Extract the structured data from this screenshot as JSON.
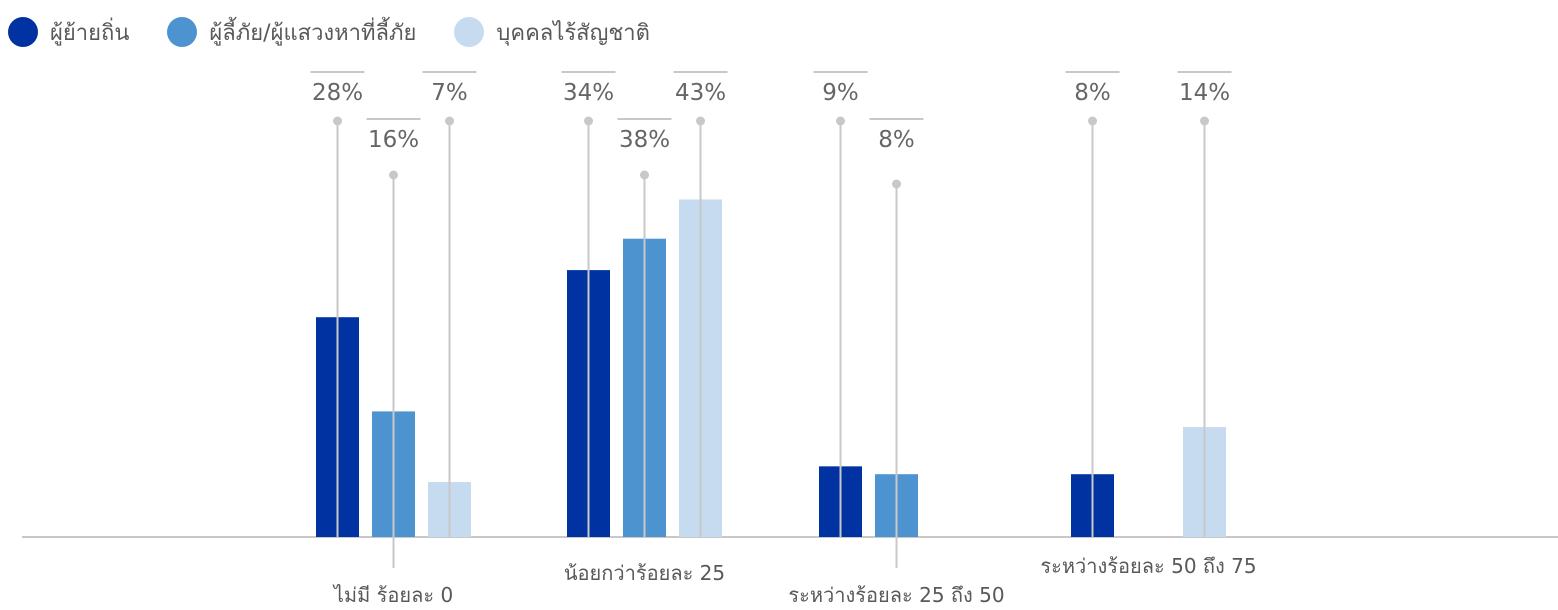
{
  "chart_data": {
    "type": "bar",
    "categories": [
      "ไม่มี ร้อยละ 0",
      "น้อยกว่าร้อยละ 25",
      "ระหว่างร้อยละ 25 ถึง 50",
      "ระหว่างร้อยละ 50 ถึง 75"
    ],
    "series": [
      {
        "name": "ผู้ย้ายถิ่น",
        "color": "#0033a1",
        "values": [
          28,
          34,
          9,
          8
        ]
      },
      {
        "name": "ผู้ลี้ภัย/ผู้แสวงหาที่ลี้ภัย",
        "color": "#4d93d0",
        "values": [
          16,
          38,
          8,
          null
        ]
      },
      {
        "name": "บุคคลไร้สัญชาติ",
        "color": "#c6dbef",
        "values": [
          7,
          43,
          null,
          14
        ]
      }
    ],
    "value_suffix": "%",
    "ylim": [
      0,
      50
    ],
    "grid": false,
    "legend_position": "top-left",
    "leader_line_color": "#c8c8c8",
    "axis_color": "#c8c8c8"
  }
}
